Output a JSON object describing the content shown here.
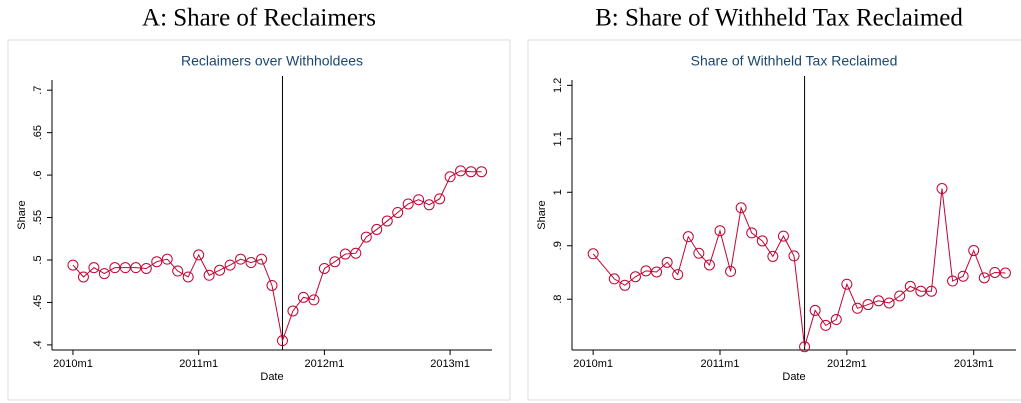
{
  "chart_data": [
    {
      "type": "line",
      "title": "A: Share of Reclaimers",
      "subtitle": "Reclaimers over Withholdees",
      "xlabel": "Date",
      "ylabel": "Share",
      "color": "#c10534",
      "marker": "circle",
      "reference_line": "2011m9",
      "x": [
        "2010m1",
        "2010m2",
        "2010m3",
        "2010m4",
        "2010m5",
        "2010m6",
        "2010m7",
        "2010m8",
        "2010m9",
        "2010m10",
        "2010m11",
        "2010m12",
        "2011m1",
        "2011m2",
        "2011m3",
        "2011m4",
        "2011m5",
        "2011m6",
        "2011m7",
        "2011m8",
        "2011m9",
        "2011m10",
        "2011m11",
        "2011m12",
        "2012m1",
        "2012m2",
        "2012m3",
        "2012m4",
        "2012m5",
        "2012m6",
        "2012m7",
        "2012m8",
        "2012m9",
        "2012m10",
        "2012m11",
        "2012m12",
        "2013m1",
        "2013m2",
        "2013m3",
        "2013m4"
      ],
      "values": [
        0.494,
        0.48,
        0.491,
        0.484,
        0.491,
        0.491,
        0.491,
        0.49,
        0.498,
        0.501,
        0.487,
        0.48,
        0.506,
        0.482,
        0.488,
        0.494,
        0.501,
        0.497,
        0.501,
        0.47,
        0.405,
        0.44,
        0.456,
        0.453,
        0.49,
        0.498,
        0.507,
        0.508,
        0.527,
        0.536,
        0.546,
        0.556,
        0.566,
        0.571,
        0.565,
        0.572,
        0.598,
        0.605,
        0.604,
        0.604
      ],
      "xlim": [
        "2009m11",
        "2013m5"
      ],
      "xticks": [
        "2010m1",
        "2011m1",
        "2012m1",
        "2013m1"
      ],
      "ylim": [
        0.394,
        0.712
      ],
      "yticks": [
        {
          "value": 0.4,
          "label": ".4"
        },
        {
          "value": 0.45,
          "label": ".45"
        },
        {
          "value": 0.5,
          "label": ".5"
        },
        {
          "value": 0.55,
          "label": ".55"
        },
        {
          "value": 0.6,
          "label": ".6"
        },
        {
          "value": 0.65,
          "label": ".65"
        },
        {
          "value": 0.7,
          "label": ".7"
        }
      ]
    },
    {
      "type": "line",
      "title": "B: Share of Withheld Tax Reclaimed",
      "subtitle": "Share of Withheld Tax Reclaimed",
      "xlabel": "Date",
      "ylabel": "Share",
      "color": "#c10534",
      "marker": "circle",
      "reference_line": "2011m9",
      "x": [
        "2010m1",
        "2010m3",
        "2010m4",
        "2010m5",
        "2010m6",
        "2010m7",
        "2010m8",
        "2010m9",
        "2010m10",
        "2010m11",
        "2010m12",
        "2011m1",
        "2011m2",
        "2011m3",
        "2011m4",
        "2011m5",
        "2011m6",
        "2011m7",
        "2011m8",
        "2011m9",
        "2011m10",
        "2011m11",
        "2011m12",
        "2012m1",
        "2012m2",
        "2012m3",
        "2012m4",
        "2012m5",
        "2012m6",
        "2012m7",
        "2012m8",
        "2012m9",
        "2012m10",
        "2012m11",
        "2012m12",
        "2013m1",
        "2013m2",
        "2013m3",
        "2013m4"
      ],
      "values": [
        0.885,
        0.838,
        0.826,
        0.842,
        0.853,
        0.851,
        0.869,
        0.846,
        0.917,
        0.886,
        0.864,
        0.928,
        0.852,
        0.971,
        0.924,
        0.909,
        0.88,
        0.918,
        0.881,
        0.711,
        0.779,
        0.751,
        0.762,
        0.828,
        0.783,
        0.79,
        0.797,
        0.793,
        0.806,
        0.824,
        0.815,
        0.815,
        1.007,
        0.834,
        0.843,
        0.891,
        0.84,
        0.85,
        0.849
      ],
      "xlim": [
        "2009m11",
        "2013m5"
      ],
      "xticks": [
        "2010m1",
        "2011m1",
        "2012m1",
        "2013m1"
      ],
      "ylim": [
        0.705,
        1.21
      ],
      "yticks": [
        {
          "value": 0.8,
          "label": ".8"
        },
        {
          "value": 0.9,
          "label": ".9"
        },
        1,
        1.1,
        1.2
      ]
    }
  ]
}
